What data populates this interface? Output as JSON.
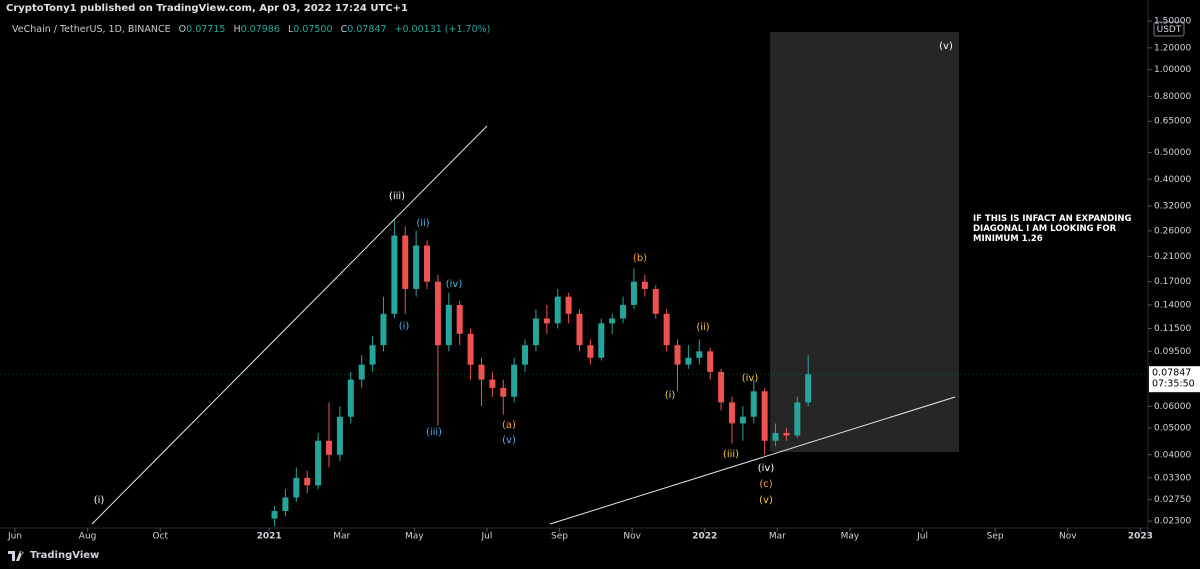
{
  "header": {
    "published": "CryptoTony1 published on TradingView.com, Apr 03, 2022 17:24 UTC+1",
    "symbol": "VeChain / TetherUS, 1D, BINANCE",
    "ohlc": [
      {
        "key": "O",
        "value": "0.07715"
      },
      {
        "key": "H",
        "value": "0.07986"
      },
      {
        "key": "L",
        "value": "0.07500"
      },
      {
        "key": "C",
        "value": "0.07847"
      }
    ],
    "change": "+0.00131 (+1.70%)"
  },
  "footer": {
    "brand": "TradingView"
  },
  "chart_data": {
    "type": "candlestick",
    "currency": "USDT",
    "log_scale": true,
    "up_color": "#26a69a",
    "down_color": "#ef5350",
    "xlim": [
      -0.413,
      31.21
    ],
    "ylim": [
      0.0217,
      1.79
    ],
    "xticks": [
      {
        "value": 0,
        "label": "Jun"
      },
      {
        "value": 2,
        "label": "Aug"
      },
      {
        "value": 4,
        "label": "Oct"
      },
      {
        "value": 7,
        "label": "2021"
      },
      {
        "value": 9,
        "label": "Mar"
      },
      {
        "value": 11,
        "label": "May"
      },
      {
        "value": 13,
        "label": "Jul"
      },
      {
        "value": 15,
        "label": "Sep"
      },
      {
        "value": 17,
        "label": "Nov"
      },
      {
        "value": 19,
        "label": "2022"
      },
      {
        "value": 21,
        "label": "Mar"
      },
      {
        "value": 23,
        "label": "May"
      },
      {
        "value": 25,
        "label": "Jul"
      },
      {
        "value": 27,
        "label": "Sep"
      },
      {
        "value": 29,
        "label": "Nov"
      },
      {
        "value": 31,
        "label": "2023"
      }
    ],
    "yticks": [
      {
        "value": 1.5,
        "label": "1.50000"
      },
      {
        "value": 1.2,
        "label": "1.20000"
      },
      {
        "value": 1.0,
        "label": "1.00000"
      },
      {
        "value": 0.8,
        "label": "0.80000"
      },
      {
        "value": 0.65,
        "label": "0.65000"
      },
      {
        "value": 0.5,
        "label": "0.50000"
      },
      {
        "value": 0.4,
        "label": "0.40000"
      },
      {
        "value": 0.32,
        "label": "0.32000"
      },
      {
        "value": 0.26,
        "label": "0.26000"
      },
      {
        "value": 0.21,
        "label": "0.21000"
      },
      {
        "value": 0.17,
        "label": "0.17000"
      },
      {
        "value": 0.14,
        "label": "0.14000"
      },
      {
        "value": 0.115,
        "label": "0.11500"
      },
      {
        "value": 0.095,
        "label": "0.09500"
      },
      {
        "value": 0.06,
        "label": "0.06000"
      },
      {
        "value": 0.05,
        "label": "0.05000"
      },
      {
        "value": 0.04,
        "label": "0.04000"
      },
      {
        "value": 0.033,
        "label": "0.03300"
      },
      {
        "value": 0.0275,
        "label": "0.02750"
      },
      {
        "value": 0.023,
        "label": "0.02300"
      }
    ],
    "x": [
      7.15,
      7.45,
      7.75,
      8.05,
      8.35,
      8.65,
      8.95,
      9.25,
      9.55,
      9.85,
      10.15,
      10.45,
      10.75,
      11.05,
      11.35,
      11.65,
      11.95,
      12.25,
      12.55,
      12.85,
      13.15,
      13.45,
      13.75,
      14.05,
      14.35,
      14.65,
      14.95,
      15.25,
      15.55,
      15.85,
      16.15,
      16.45,
      16.75,
      17.05,
      17.35,
      17.65,
      17.95,
      18.25,
      18.55,
      18.85,
      19.15,
      19.45,
      19.75,
      20.05,
      20.35,
      20.65,
      20.95,
      21.25,
      21.55,
      21.85
    ],
    "open": [
      0.0235,
      0.025,
      0.028,
      0.033,
      0.031,
      0.045,
      0.04,
      0.055,
      0.075,
      0.085,
      0.1,
      0.13,
      0.25,
      0.16,
      0.23,
      0.17,
      0.1,
      0.14,
      0.11,
      0.085,
      0.075,
      0.07,
      0.065,
      0.085,
      0.1,
      0.125,
      0.12,
      0.15,
      0.13,
      0.1,
      0.09,
      0.12,
      0.125,
      0.14,
      0.17,
      0.16,
      0.13,
      0.1,
      0.085,
      0.09,
      0.095,
      0.08,
      0.062,
      0.052,
      0.055,
      0.068,
      0.045,
      0.048,
      0.047,
      0.062
    ],
    "high": [
      0.026,
      0.03,
      0.036,
      0.035,
      0.048,
      0.062,
      0.06,
      0.08,
      0.092,
      0.108,
      0.15,
      0.285,
      0.27,
      0.26,
      0.24,
      0.18,
      0.155,
      0.145,
      0.115,
      0.09,
      0.08,
      0.075,
      0.09,
      0.105,
      0.135,
      0.14,
      0.16,
      0.155,
      0.135,
      0.105,
      0.125,
      0.13,
      0.15,
      0.19,
      0.18,
      0.165,
      0.135,
      0.105,
      0.1,
      0.105,
      0.098,
      0.082,
      0.065,
      0.06,
      0.075,
      0.07,
      0.052,
      0.05,
      0.065,
      0.092
    ],
    "low": [
      0.022,
      0.024,
      0.027,
      0.029,
      0.03,
      0.036,
      0.038,
      0.052,
      0.07,
      0.08,
      0.095,
      0.125,
      0.13,
      0.15,
      0.16,
      0.051,
      0.095,
      0.1,
      0.075,
      0.06,
      0.065,
      0.056,
      0.062,
      0.08,
      0.095,
      0.11,
      0.115,
      0.12,
      0.095,
      0.085,
      0.088,
      0.11,
      0.12,
      0.135,
      0.15,
      0.125,
      0.095,
      0.068,
      0.082,
      0.085,
      0.075,
      0.058,
      0.044,
      0.045,
      0.052,
      0.04,
      0.043,
      0.045,
      0.046,
      0.06
    ],
    "close": [
      0.025,
      0.028,
      0.033,
      0.031,
      0.045,
      0.04,
      0.055,
      0.075,
      0.085,
      0.1,
      0.13,
      0.25,
      0.16,
      0.23,
      0.17,
      0.1,
      0.14,
      0.11,
      0.085,
      0.075,
      0.07,
      0.065,
      0.085,
      0.1,
      0.125,
      0.12,
      0.15,
      0.13,
      0.1,
      0.09,
      0.12,
      0.125,
      0.14,
      0.17,
      0.16,
      0.13,
      0.1,
      0.085,
      0.09,
      0.095,
      0.08,
      0.062,
      0.052,
      0.055,
      0.068,
      0.045,
      0.048,
      0.047,
      0.062,
      0.07847
    ],
    "last_price": {
      "value": 0.07847,
      "label": "0.07847"
    },
    "countdown": "07:35:50",
    "annotations": [
      "(i)",
      "(iii)",
      "(ii)",
      "(i)",
      "(iv)",
      "(iii)",
      "(a)",
      "(v)",
      "(b)",
      "(ii)",
      "(i)",
      "(iv)",
      "(iii)",
      "(iv)",
      "(c)",
      "(v)",
      "(v)"
    ],
    "note": "IF THIS IS INFACT AN EXPANDING DIAGONAL I AM LOOKING FOR MINIMUM 1.26"
  }
}
